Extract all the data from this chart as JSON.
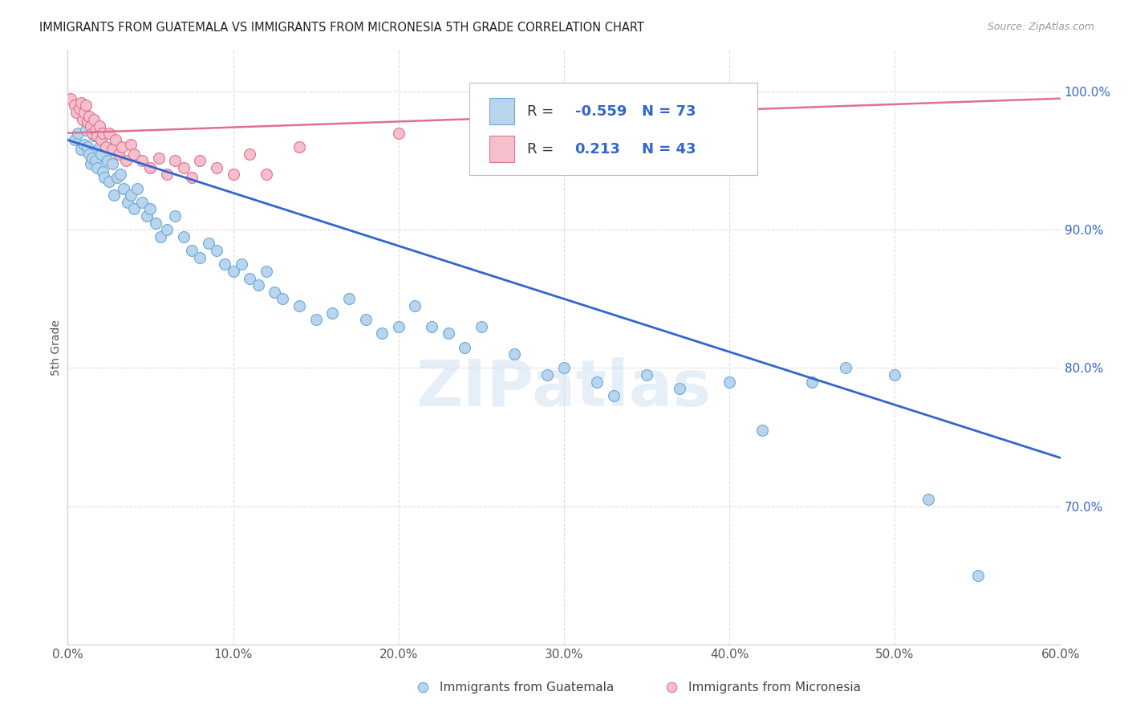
{
  "title": "IMMIGRANTS FROM GUATEMALA VS IMMIGRANTS FROM MICRONESIA 5TH GRADE CORRELATION CHART",
  "source": "Source: ZipAtlas.com",
  "ylabel": "5th Grade",
  "xlim": [
    0.0,
    60.0
  ],
  "ylim": [
    60.0,
    103.0
  ],
  "x_ticks": [
    0,
    10,
    20,
    30,
    40,
    50,
    60
  ],
  "y_ticks_right": [
    70,
    80,
    90,
    100
  ],
  "guatemala_color": "#b8d4ee",
  "guatemala_edge_color": "#6aaad4",
  "micronesia_color": "#f5c0cc",
  "micronesia_edge_color": "#e07090",
  "guatemala_line_color": "#3366cc",
  "micronesia_line_color": "#e07090",
  "legend_r_color": "#3366cc",
  "legend_r_guatemala": "-0.559",
  "legend_n_guatemala": "73",
  "legend_r_micronesia": "0.213",
  "legend_n_micronesia": "43",
  "watermark": "ZIPatlas",
  "guat_line_x0": 0,
  "guat_line_y0": 96.5,
  "guat_line_x1": 60,
  "guat_line_y1": 73.5,
  "micro_line_x0": 0,
  "micro_line_y0": 97.0,
  "micro_line_x1": 60,
  "micro_line_y1": 99.5
}
